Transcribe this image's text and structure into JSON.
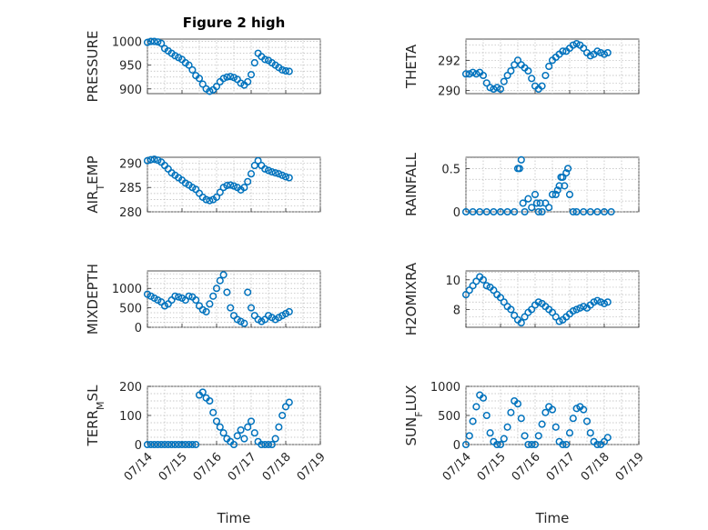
{
  "figure_title": "Figure 2 high",
  "xlabel": "Time",
  "x_tick_labels": [
    "07/14",
    "07/15",
    "07/16",
    "07/17",
    "07/18",
    "07/19"
  ],
  "marker_color": "#0072BD",
  "chart_data": [
    {
      "type": "scatter",
      "ylabel": "PRESSURE",
      "ylabel_parts": [
        [
          "PRESSURE",
          ""
        ]
      ],
      "yticks": [
        900,
        950,
        1000
      ],
      "ylim": [
        890,
        1005
      ],
      "x_unit": "days since 07/14 00:00",
      "xlim": [
        0,
        5
      ],
      "x": [
        0,
        0.1,
        0.2,
        0.3,
        0.4,
        0.5,
        0.6,
        0.7,
        0.8,
        0.9,
        1.0,
        1.1,
        1.2,
        1.3,
        1.4,
        1.5,
        1.6,
        1.7,
        1.8,
        1.9,
        2.0,
        2.1,
        2.2,
        2.3,
        2.4,
        2.5,
        2.6,
        2.7,
        2.8,
        2.9,
        3.0,
        3.1,
        3.2,
        3.3,
        3.4,
        3.5,
        3.6,
        3.7,
        3.8,
        3.9,
        4.0,
        4.1
      ],
      "y": [
        998,
        1000,
        1000,
        999,
        996,
        985,
        980,
        975,
        970,
        966,
        962,
        955,
        950,
        940,
        928,
        922,
        910,
        900,
        895,
        898,
        905,
        915,
        922,
        925,
        926,
        924,
        920,
        912,
        908,
        915,
        930,
        955,
        975,
        968,
        962,
        960,
        955,
        950,
        945,
        940,
        938,
        937
      ]
    },
    {
      "type": "scatter",
      "ylabel": "THETA",
      "ylabel_parts": [
        [
          "THETA",
          ""
        ]
      ],
      "yticks": [
        290,
        292
      ],
      "ylim": [
        289.8,
        293.4
      ],
      "x_unit": "days since 07/14 00:00",
      "xlim": [
        0,
        5
      ],
      "x": [
        0,
        0.1,
        0.2,
        0.3,
        0.4,
        0.5,
        0.6,
        0.7,
        0.8,
        0.9,
        1.0,
        1.1,
        1.2,
        1.3,
        1.4,
        1.5,
        1.6,
        1.7,
        1.8,
        1.9,
        2.0,
        2.1,
        2.2,
        2.3,
        2.4,
        2.5,
        2.6,
        2.7,
        2.8,
        2.9,
        3.0,
        3.1,
        3.2,
        3.3,
        3.4,
        3.5,
        3.6,
        3.7,
        3.8,
        3.9,
        4.0,
        4.1
      ],
      "y": [
        291.1,
        291.1,
        291.2,
        291.1,
        291.2,
        291.0,
        290.5,
        290.2,
        290.1,
        290.2,
        290.1,
        290.6,
        291.0,
        291.3,
        291.7,
        292.0,
        291.7,
        291.5,
        291.3,
        290.8,
        290.3,
        290.1,
        290.3,
        291.0,
        291.6,
        292.0,
        292.2,
        292.4,
        292.6,
        292.6,
        292.8,
        293.0,
        293.1,
        293.0,
        292.8,
        292.5,
        292.3,
        292.4,
        292.6,
        292.5,
        292.4,
        292.5
      ]
    },
    {
      "type": "scatter",
      "ylabel": "AIR_TEMP",
      "ylabel_parts": [
        [
          "AIR",
          ""
        ],
        [
          "T",
          "sub"
        ],
        [
          "EMP",
          ""
        ]
      ],
      "yticks": [
        280,
        285,
        290
      ],
      "ylim": [
        280,
        291.2
      ],
      "x_unit": "days since 07/14 00:00",
      "xlim": [
        0,
        5
      ],
      "x": [
        0,
        0.1,
        0.2,
        0.3,
        0.4,
        0.5,
        0.6,
        0.7,
        0.8,
        0.9,
        1.0,
        1.1,
        1.2,
        1.3,
        1.4,
        1.5,
        1.6,
        1.7,
        1.8,
        1.9,
        2.0,
        2.1,
        2.2,
        2.3,
        2.4,
        2.5,
        2.6,
        2.7,
        2.8,
        2.9,
        3.0,
        3.1,
        3.2,
        3.3,
        3.4,
        3.5,
        3.6,
        3.7,
        3.8,
        3.9,
        4.0,
        4.1
      ],
      "y": [
        290.5,
        290.7,
        290.8,
        290.6,
        290.2,
        289.5,
        288.8,
        288.0,
        287.5,
        287.0,
        286.5,
        285.9,
        285.5,
        285.0,
        284.6,
        283.8,
        283.0,
        282.5,
        282.3,
        282.5,
        283.0,
        284.0,
        285.0,
        285.4,
        285.5,
        285.3,
        285.0,
        284.5,
        285.0,
        286.2,
        287.8,
        289.5,
        290.5,
        289.5,
        288.8,
        288.5,
        288.2,
        288.0,
        287.8,
        287.5,
        287.2,
        287.0
      ]
    },
    {
      "type": "scatter",
      "ylabel": "RAINFALL",
      "ylabel_parts": [
        [
          "RAINFALL",
          ""
        ]
      ],
      "yticks": [
        0,
        0.5
      ],
      "ylim": [
        0,
        0.63
      ],
      "x_unit": "days since 07/14 00:00",
      "xlim": [
        0,
        5
      ],
      "x": [
        0,
        0.2,
        0.4,
        0.6,
        0.8,
        1.0,
        1.2,
        1.4,
        1.5,
        1.55,
        1.6,
        1.65,
        1.7,
        1.8,
        1.9,
        2.0,
        2.05,
        2.1,
        2.15,
        2.2,
        2.3,
        2.4,
        2.5,
        2.6,
        2.65,
        2.7,
        2.75,
        2.8,
        2.85,
        2.9,
        2.95,
        3.0,
        3.1,
        3.2,
        3.4,
        3.6,
        3.8,
        4.0,
        4.2
      ],
      "y": [
        0,
        0,
        0,
        0,
        0,
        0,
        0,
        0,
        0.5,
        0.5,
        0.6,
        0.1,
        0,
        0.15,
        0.05,
        0.2,
        0.1,
        0,
        0.1,
        0,
        0.1,
        0.05,
        0.2,
        0.2,
        0.25,
        0.3,
        0.4,
        0.4,
        0.3,
        0.45,
        0.5,
        0.2,
        0,
        0,
        0,
        0,
        0,
        0,
        0
      ]
    },
    {
      "type": "scatter",
      "ylabel": "MIXDEPTH",
      "ylabel_parts": [
        [
          "MIXDEPTH",
          ""
        ]
      ],
      "yticks": [
        0,
        500,
        1000
      ],
      "ylim": [
        0,
        1450
      ],
      "x_unit": "days since 07/14 00:00",
      "xlim": [
        0,
        5
      ],
      "x": [
        0,
        0.1,
        0.2,
        0.3,
        0.4,
        0.5,
        0.6,
        0.7,
        0.8,
        0.9,
        1.0,
        1.1,
        1.2,
        1.3,
        1.4,
        1.5,
        1.6,
        1.7,
        1.8,
        1.9,
        2.0,
        2.1,
        2.2,
        2.3,
        2.4,
        2.5,
        2.6,
        2.7,
        2.8,
        2.9,
        3.0,
        3.1,
        3.2,
        3.3,
        3.4,
        3.5,
        3.6,
        3.7,
        3.8,
        3.9,
        4.0,
        4.1
      ],
      "y": [
        850,
        800,
        750,
        700,
        650,
        550,
        600,
        700,
        800,
        780,
        750,
        700,
        800,
        780,
        700,
        550,
        450,
        400,
        600,
        800,
        1000,
        1200,
        1350,
        900,
        500,
        300,
        200,
        150,
        100,
        900,
        500,
        300,
        200,
        150,
        200,
        300,
        250,
        200,
        250,
        300,
        350,
        400
      ]
    },
    {
      "type": "scatter",
      "ylabel": "H2OMIXRA",
      "ylabel_parts": [
        [
          "H2OMIXRA",
          ""
        ]
      ],
      "yticks": [
        8,
        10
      ],
      "ylim": [
        6.8,
        10.6
      ],
      "x_unit": "days since 07/14 00:00",
      "xlim": [
        0,
        5
      ],
      "x": [
        0,
        0.1,
        0.2,
        0.3,
        0.4,
        0.5,
        0.6,
        0.7,
        0.8,
        0.9,
        1.0,
        1.1,
        1.2,
        1.3,
        1.4,
        1.5,
        1.6,
        1.7,
        1.8,
        1.9,
        2.0,
        2.1,
        2.2,
        2.3,
        2.4,
        2.5,
        2.6,
        2.7,
        2.8,
        2.9,
        3.0,
        3.1,
        3.2,
        3.3,
        3.4,
        3.5,
        3.6,
        3.7,
        3.8,
        3.9,
        4.0,
        4.1
      ],
      "y": [
        9.0,
        9.3,
        9.6,
        9.9,
        10.2,
        10.0,
        9.6,
        9.5,
        9.3,
        9.0,
        8.8,
        8.5,
        8.2,
        8.0,
        7.6,
        7.3,
        7.1,
        7.5,
        7.8,
        8.0,
        8.3,
        8.5,
        8.4,
        8.2,
        8.0,
        7.8,
        7.5,
        7.2,
        7.3,
        7.5,
        7.7,
        7.9,
        8.0,
        8.1,
        8.2,
        8.1,
        8.3,
        8.5,
        8.6,
        8.5,
        8.4,
        8.5
      ]
    },
    {
      "type": "scatter",
      "ylabel": "TERR_MSL",
      "ylabel_parts": [
        [
          "TERR",
          ""
        ],
        [
          "M",
          "sub"
        ],
        [
          "SL",
          ""
        ]
      ],
      "yticks": [
        0,
        100,
        200
      ],
      "ylim": [
        0,
        200
      ],
      "x_unit": "days since 07/14 00:00",
      "xlim": [
        0,
        5
      ],
      "x": [
        0,
        0.1,
        0.2,
        0.3,
        0.4,
        0.5,
        0.6,
        0.7,
        0.8,
        0.9,
        1.0,
        1.1,
        1.2,
        1.3,
        1.4,
        1.5,
        1.6,
        1.7,
        1.8,
        1.9,
        2.0,
        2.1,
        2.2,
        2.3,
        2.4,
        2.5,
        2.6,
        2.7,
        2.8,
        2.9,
        3.0,
        3.1,
        3.2,
        3.3,
        3.4,
        3.5,
        3.6,
        3.7,
        3.8,
        3.9,
        4.0,
        4.1
      ],
      "y": [
        0,
        0,
        0,
        0,
        0,
        0,
        0,
        0,
        0,
        0,
        0,
        0,
        0,
        0,
        0,
        170,
        180,
        160,
        150,
        110,
        80,
        60,
        40,
        20,
        10,
        0,
        30,
        50,
        20,
        60,
        80,
        40,
        10,
        0,
        0,
        0,
        0,
        20,
        60,
        100,
        130,
        145
      ]
    },
    {
      "type": "scatter",
      "ylabel": "SUN_FLUX",
      "ylabel_parts": [
        [
          "SUN",
          ""
        ],
        [
          "F",
          "sub"
        ],
        [
          "LUX",
          ""
        ]
      ],
      "yticks": [
        0,
        500,
        1000
      ],
      "ylim": [
        0,
        1000
      ],
      "x_unit": "days since 07/14 00:00",
      "xlim": [
        0,
        5
      ],
      "x": [
        0,
        0.1,
        0.2,
        0.3,
        0.4,
        0.5,
        0.6,
        0.7,
        0.8,
        0.9,
        1.0,
        1.1,
        1.2,
        1.3,
        1.4,
        1.5,
        1.6,
        1.7,
        1.8,
        1.9,
        2.0,
        2.1,
        2.2,
        2.3,
        2.4,
        2.5,
        2.6,
        2.7,
        2.8,
        2.9,
        3.0,
        3.1,
        3.2,
        3.3,
        3.4,
        3.5,
        3.6,
        3.7,
        3.8,
        3.9,
        4.0,
        4.1
      ],
      "y": [
        0,
        150,
        400,
        650,
        850,
        800,
        500,
        200,
        50,
        0,
        0,
        100,
        300,
        550,
        750,
        700,
        450,
        150,
        0,
        0,
        0,
        150,
        350,
        550,
        650,
        600,
        300,
        50,
        0,
        0,
        200,
        450,
        620,
        650,
        600,
        400,
        200,
        50,
        0,
        0,
        50,
        120
      ]
    }
  ]
}
